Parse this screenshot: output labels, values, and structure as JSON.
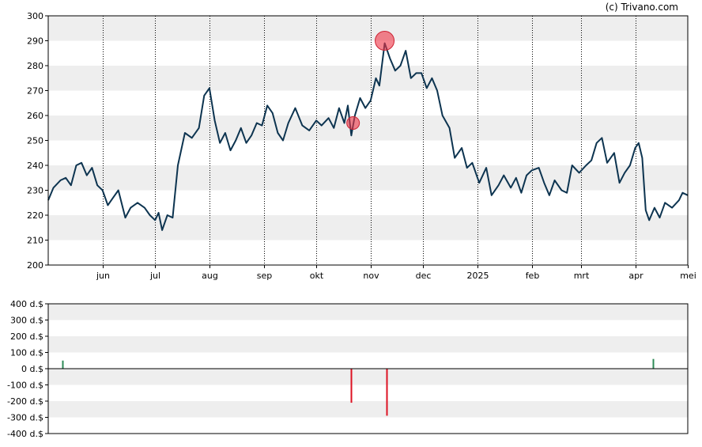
{
  "credit": "(c) Trivano.com",
  "colors": {
    "price_line": "#0d3450",
    "band": "#eeeeee",
    "marker": "#ee3344",
    "buy_bar": "#2e8b57",
    "sell_bar": "#dd1122",
    "axis": "#000000"
  },
  "chart_data": [
    {
      "type": "line",
      "title": "",
      "xlabel": "",
      "ylabel": "",
      "ylim": [
        200,
        300
      ],
      "grid": "horizontal alternating bands, dotted vertical month lines",
      "y_ticks": [
        "300",
        "290",
        "280",
        "270",
        "260",
        "250",
        "240",
        "230",
        "220",
        "210",
        "200"
      ],
      "x_ticks": [
        {
          "label": "jun",
          "date": "2024-06-01"
        },
        {
          "label": "jul",
          "date": "2024-07-01"
        },
        {
          "label": "aug",
          "date": "2024-08-01"
        },
        {
          "label": "sep",
          "date": "2024-09-01"
        },
        {
          "label": "okt",
          "date": "2024-10-01"
        },
        {
          "label": "nov",
          "date": "2024-11-01"
        },
        {
          "label": "dec",
          "date": "2024-12-01"
        },
        {
          "label": "2025",
          "date": "2025-01-01"
        },
        {
          "label": "feb",
          "date": "2025-02-01"
        },
        {
          "label": "mrt",
          "date": "2025-03-01"
        },
        {
          "label": "apr",
          "date": "2025-04-01"
        },
        {
          "label": "mei",
          "date": "2025-05-01"
        }
      ],
      "x_range": [
        "2024-05-01",
        "2025-05-01"
      ],
      "series": [
        {
          "points": [
            [
              "2024-05-01",
              226
            ],
            [
              "2024-05-04",
              231
            ],
            [
              "2024-05-08",
              234
            ],
            [
              "2024-05-11",
              235
            ],
            [
              "2024-05-14",
              232
            ],
            [
              "2024-05-17",
              240
            ],
            [
              "2024-05-20",
              241
            ],
            [
              "2024-05-23",
              236
            ],
            [
              "2024-05-26",
              239
            ],
            [
              "2024-05-29",
              232
            ],
            [
              "2024-06-01",
              230
            ],
            [
              "2024-06-04",
              224
            ],
            [
              "2024-06-07",
              227
            ],
            [
              "2024-06-10",
              230
            ],
            [
              "2024-06-14",
              219
            ],
            [
              "2024-06-17",
              223
            ],
            [
              "2024-06-21",
              225
            ],
            [
              "2024-06-25",
              223
            ],
            [
              "2024-06-28",
              220
            ],
            [
              "2024-07-01",
              218
            ],
            [
              "2024-07-03",
              221
            ],
            [
              "2024-07-05",
              214
            ],
            [
              "2024-07-08",
              220
            ],
            [
              "2024-07-11",
              219
            ],
            [
              "2024-07-14",
              240
            ],
            [
              "2024-07-18",
              253
            ],
            [
              "2024-07-22",
              251
            ],
            [
              "2024-07-26",
              255
            ],
            [
              "2024-07-29",
              268
            ],
            [
              "2024-08-01",
              271
            ],
            [
              "2024-08-04",
              258
            ],
            [
              "2024-08-07",
              249
            ],
            [
              "2024-08-10",
              253
            ],
            [
              "2024-08-13",
              246
            ],
            [
              "2024-08-16",
              250
            ],
            [
              "2024-08-19",
              255
            ],
            [
              "2024-08-22",
              249
            ],
            [
              "2024-08-25",
              252
            ],
            [
              "2024-08-28",
              257
            ],
            [
              "2024-08-31",
              256
            ],
            [
              "2024-09-03",
              264
            ],
            [
              "2024-09-06",
              261
            ],
            [
              "2024-09-09",
              253
            ],
            [
              "2024-09-12",
              250
            ],
            [
              "2024-09-15",
              257
            ],
            [
              "2024-09-19",
              263
            ],
            [
              "2024-09-23",
              256
            ],
            [
              "2024-09-27",
              254
            ],
            [
              "2024-10-01",
              258
            ],
            [
              "2024-10-04",
              256
            ],
            [
              "2024-10-08",
              259
            ],
            [
              "2024-10-11",
              255
            ],
            [
              "2024-10-14",
              263
            ],
            [
              "2024-10-17",
              257
            ],
            [
              "2024-10-19",
              264
            ],
            [
              "2024-10-21",
              252
            ],
            [
              "2024-10-23",
              260
            ],
            [
              "2024-10-26",
              267
            ],
            [
              "2024-10-29",
              263
            ],
            [
              "2024-11-01",
              266
            ],
            [
              "2024-11-04",
              275
            ],
            [
              "2024-11-06",
              272
            ],
            [
              "2024-11-09",
              289
            ],
            [
              "2024-11-12",
              283
            ],
            [
              "2024-11-15",
              278
            ],
            [
              "2024-11-18",
              280
            ],
            [
              "2024-11-21",
              286
            ],
            [
              "2024-11-24",
              275
            ],
            [
              "2024-11-27",
              277
            ],
            [
              "2024-11-30",
              277
            ],
            [
              "2024-12-03",
              271
            ],
            [
              "2024-12-06",
              275
            ],
            [
              "2024-12-09",
              270
            ],
            [
              "2024-12-12",
              260
            ],
            [
              "2024-12-16",
              255
            ],
            [
              "2024-12-19",
              243
            ],
            [
              "2024-12-23",
              247
            ],
            [
              "2024-12-26",
              239
            ],
            [
              "2024-12-29",
              241
            ],
            [
              "2025-01-02",
              233
            ],
            [
              "2025-01-06",
              239
            ],
            [
              "2025-01-09",
              228
            ],
            [
              "2025-01-13",
              232
            ],
            [
              "2025-01-16",
              236
            ],
            [
              "2025-01-20",
              231
            ],
            [
              "2025-01-23",
              235
            ],
            [
              "2025-01-26",
              229
            ],
            [
              "2025-01-29",
              236
            ],
            [
              "2025-02-01",
              238
            ],
            [
              "2025-02-05",
              239
            ],
            [
              "2025-02-08",
              233
            ],
            [
              "2025-02-11",
              228
            ],
            [
              "2025-02-14",
              234
            ],
            [
              "2025-02-18",
              230
            ],
            [
              "2025-02-21",
              229
            ],
            [
              "2025-02-24",
              240
            ],
            [
              "2025-02-28",
              237
            ],
            [
              "2025-03-04",
              240
            ],
            [
              "2025-03-07",
              242
            ],
            [
              "2025-03-10",
              249
            ],
            [
              "2025-03-13",
              251
            ],
            [
              "2025-03-16",
              241
            ],
            [
              "2025-03-20",
              245
            ],
            [
              "2025-03-23",
              233
            ],
            [
              "2025-03-26",
              237
            ],
            [
              "2025-03-29",
              240
            ],
            [
              "2025-04-01",
              247
            ],
            [
              "2025-04-03",
              249
            ],
            [
              "2025-04-05",
              243
            ],
            [
              "2025-04-07",
              222
            ],
            [
              "2025-04-09",
              218
            ],
            [
              "2025-04-12",
              223
            ],
            [
              "2025-04-15",
              219
            ],
            [
              "2025-04-18",
              225
            ],
            [
              "2025-04-22",
              223
            ],
            [
              "2025-04-26",
              226
            ],
            [
              "2025-04-28",
              229
            ],
            [
              "2025-05-01",
              228
            ]
          ]
        }
      ],
      "markers": [
        {
          "date": "2024-10-22",
          "value": 257
        },
        {
          "date": "2024-11-09",
          "value": 290
        }
      ]
    },
    {
      "type": "bar",
      "title": "",
      "xlabel": "",
      "ylabel": "",
      "ylim": [
        -400,
        400
      ],
      "grid": "horizontal alternating bands",
      "y_ticks": [
        "400 d.$",
        "300 d.$",
        "200 d.$",
        "100 d.$",
        "0 d.$",
        "-100 d.$",
        "-200 d.$",
        "-300 d.$",
        "-400 d.$"
      ],
      "x_range": [
        "2024-05-01",
        "2025-05-01"
      ],
      "bars": [
        {
          "date": "2024-05-09",
          "value": 50,
          "kind": "buy"
        },
        {
          "date": "2024-10-21",
          "value": -210,
          "kind": "sell"
        },
        {
          "date": "2024-11-10",
          "value": -290,
          "kind": "sell"
        },
        {
          "date": "2025-04-11",
          "value": 60,
          "kind": "buy"
        }
      ]
    }
  ]
}
